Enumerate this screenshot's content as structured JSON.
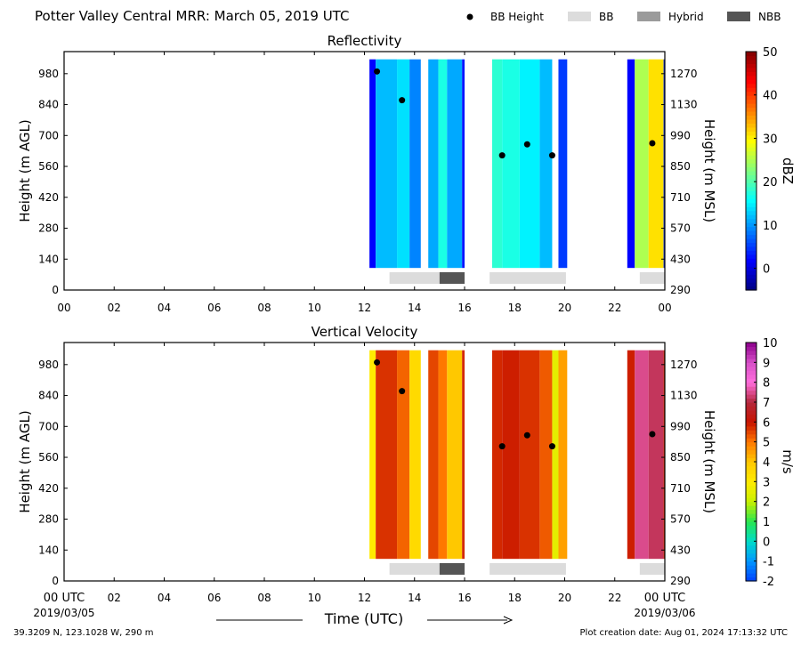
{
  "header": {
    "title": "Potter Valley Central MRR:  March 05, 2019 UTC",
    "legend": [
      {
        "label": "BB Height",
        "kind": "dot",
        "color": "#000000"
      },
      {
        "label": "BB",
        "kind": "box",
        "color": "#dcdcdc"
      },
      {
        "label": "Hybrid",
        "kind": "box",
        "color": "#9b9b9b"
      },
      {
        "label": "NBB",
        "kind": "box",
        "color": "#555555"
      }
    ]
  },
  "footer": {
    "start_label": "00 UTC",
    "start_date": "2019/03/05",
    "end_label": "00 UTC",
    "end_date": "2019/03/06",
    "location": "39.3209 N, 123.1028 W, 290 m",
    "creation": "Plot creation date: Aug 01, 2024 17:13:32 UTC",
    "xlabel": "Time (UTC)"
  },
  "chart_data": [
    {
      "type": "heatmap",
      "title": "Reflectivity",
      "xlabel": "Time (UTC)",
      "ylabel": "Height (m AGL)",
      "ylabel2": "Height (m MSL)",
      "xlim": [
        0,
        24
      ],
      "ylim": [
        0,
        1080
      ],
      "x_ticks": [
        "00",
        "02",
        "04",
        "06",
        "08",
        "10",
        "12",
        "14",
        "16",
        "18",
        "20",
        "22",
        "00"
      ],
      "y_ticks": [
        0,
        140,
        280,
        420,
        560,
        700,
        840,
        980
      ],
      "y2_ticks": [
        290,
        430,
        570,
        710,
        850,
        990,
        1130,
        1270
      ],
      "colorbar": {
        "label": "dBZ",
        "min": -5,
        "max": 50,
        "ticks": [
          0,
          10,
          20,
          30,
          40,
          50
        ],
        "scale": "jet"
      },
      "data_segments": [
        {
          "start": 12.2,
          "end": 12.45,
          "value": 2
        },
        {
          "start": 12.45,
          "end": 13.3,
          "value": 12
        },
        {
          "start": 13.3,
          "end": 13.8,
          "value": 14
        },
        {
          "start": 13.8,
          "end": 14.25,
          "value": 9
        },
        {
          "start": 14.55,
          "end": 14.95,
          "value": 11
        },
        {
          "start": 14.95,
          "end": 15.3,
          "value": 17
        },
        {
          "start": 15.3,
          "end": 15.9,
          "value": 11
        },
        {
          "start": 15.9,
          "end": 16.0,
          "value": 3
        },
        {
          "start": 17.1,
          "end": 17.5,
          "value": 18
        },
        {
          "start": 17.5,
          "end": 18.2,
          "value": 17
        },
        {
          "start": 18.2,
          "end": 19.0,
          "value": 15
        },
        {
          "start": 19.0,
          "end": 19.5,
          "value": 12
        },
        {
          "start": 19.75,
          "end": 20.1,
          "value": 5
        },
        {
          "start": 22.5,
          "end": 22.8,
          "value": 2
        },
        {
          "start": 22.8,
          "end": 23.35,
          "value": 25
        },
        {
          "start": 23.35,
          "end": 23.95,
          "value": 31
        },
        {
          "start": 23.95,
          "end": 24.0,
          "value": 4
        }
      ],
      "data_height": [
        100,
        1045
      ],
      "bb_height": [
        {
          "x": 12.5,
          "y": 990
        },
        {
          "x": 13.5,
          "y": 860
        },
        {
          "x": 17.5,
          "y": 610
        },
        {
          "x": 18.5,
          "y": 660
        },
        {
          "x": 19.5,
          "y": 610
        },
        {
          "x": 23.5,
          "y": 665
        }
      ],
      "bb_type_bars": [
        {
          "start": 13.0,
          "end": 15.0,
          "type": "BB"
        },
        {
          "start": 15.0,
          "end": 16.0,
          "type": "NBB"
        },
        {
          "start": 17.0,
          "end": 20.05,
          "type": "BB"
        },
        {
          "start": 23.0,
          "end": 24.0,
          "type": "BB"
        }
      ]
    },
    {
      "type": "heatmap",
      "title": "Vertical Velocity",
      "xlabel": "Time (UTC)",
      "ylabel": "Height (m AGL)",
      "ylabel2": "Height (m MSL)",
      "xlim": [
        0,
        24
      ],
      "ylim": [
        0,
        1080
      ],
      "x_ticks": [
        "00 UTC",
        "02",
        "04",
        "06",
        "08",
        "10",
        "12",
        "14",
        "16",
        "18",
        "20",
        "22",
        "00 UTC"
      ],
      "y_ticks": [
        0,
        140,
        280,
        420,
        560,
        700,
        840,
        980
      ],
      "y2_ticks": [
        290,
        430,
        570,
        710,
        850,
        990,
        1130,
        1270
      ],
      "colorbar": {
        "label": "m/s",
        "min": -2,
        "max": 10,
        "ticks": [
          -2,
          -1,
          0,
          1,
          2,
          3,
          4,
          5,
          6,
          7,
          8,
          9,
          10
        ],
        "scale": "velocity"
      },
      "data_segments": [
        {
          "start": 12.2,
          "end": 12.45,
          "value": 3
        },
        {
          "start": 12.45,
          "end": 13.3,
          "value": 5.7
        },
        {
          "start": 13.3,
          "end": 13.8,
          "value": 5.2
        },
        {
          "start": 13.8,
          "end": 14.25,
          "value": 3.5
        },
        {
          "start": 14.55,
          "end": 14.95,
          "value": 5.5
        },
        {
          "start": 14.95,
          "end": 15.3,
          "value": 5.0
        },
        {
          "start": 15.3,
          "end": 15.9,
          "value": 4.0
        },
        {
          "start": 15.9,
          "end": 16.0,
          "value": 5.8
        },
        {
          "start": 17.1,
          "end": 17.5,
          "value": 5.8
        },
        {
          "start": 17.5,
          "end": 18.2,
          "value": 5.9
        },
        {
          "start": 18.2,
          "end": 19.0,
          "value": 5.7
        },
        {
          "start": 19.0,
          "end": 19.5,
          "value": 5.3
        },
        {
          "start": 19.5,
          "end": 19.75,
          "value": 2.5
        },
        {
          "start": 19.75,
          "end": 20.1,
          "value": 4.5
        },
        {
          "start": 22.5,
          "end": 22.8,
          "value": 5.9
        },
        {
          "start": 22.8,
          "end": 23.35,
          "value": 7.5
        },
        {
          "start": 23.35,
          "end": 23.95,
          "value": 7.2
        },
        {
          "start": 23.95,
          "end": 24.0,
          "value": 5.8
        }
      ],
      "data_height": [
        100,
        1045
      ],
      "bb_height": [
        {
          "x": 12.5,
          "y": 990
        },
        {
          "x": 13.5,
          "y": 860
        },
        {
          "x": 17.5,
          "y": 610
        },
        {
          "x": 18.5,
          "y": 660
        },
        {
          "x": 19.5,
          "y": 610
        },
        {
          "x": 23.5,
          "y": 665
        }
      ],
      "bb_type_bars": [
        {
          "start": 13.0,
          "end": 15.0,
          "type": "BB"
        },
        {
          "start": 15.0,
          "end": 16.0,
          "type": "NBB"
        },
        {
          "start": 17.0,
          "end": 20.05,
          "type": "BB"
        },
        {
          "start": 23.0,
          "end": 24.0,
          "type": "BB"
        }
      ]
    }
  ]
}
